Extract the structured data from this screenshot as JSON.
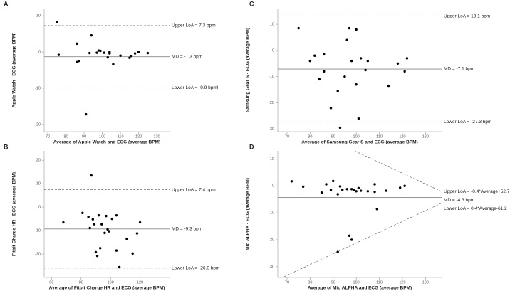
{
  "chart_data": [
    {
      "type": "scatter",
      "letter": "A",
      "x_label": "Average of Apple Watch and ECG (average BPM)",
      "y_label": "Apple Watch - ECG (average BPM)",
      "x": [
        75,
        76,
        86,
        86,
        87,
        91,
        93,
        94,
        97,
        98,
        99,
        101,
        103,
        104,
        104,
        106,
        110,
        115,
        116,
        118,
        120,
        125
      ],
      "y": [
        8.2,
        -0.8,
        2.3,
        -2.8,
        -2.5,
        -17.2,
        -0.3,
        4.6,
        -0.2,
        0.4,
        0.3,
        -0.2,
        -1.5,
        -0.4,
        0,
        -3.4,
        -1,
        -1.6,
        -1.1,
        -0.4,
        0,
        -0.3
      ],
      "color": "#000000",
      "xlim": [
        68,
        137
      ],
      "ylim": [
        -22,
        12
      ],
      "xticks": [
        70,
        80,
        90,
        100,
        110,
        120,
        130
      ],
      "yticks": [
        10,
        0,
        -10,
        -20
      ],
      "reference_lines": [
        {
          "label": "Upper LoA = 7.3 bpm",
          "value": 7.3,
          "style": "dashed"
        },
        {
          "label": "MD = -1.3 bpm",
          "value": -1.3,
          "style": "solid"
        },
        {
          "label": "Lower LoA = -9.9 bpml",
          "value": -9.9,
          "style": "dashed"
        }
      ]
    },
    {
      "type": "scatter",
      "letter": "B",
      "x_label": "Average of Fitbit Charge HR and ECG (average BPM)",
      "y_label": "Fitbit Charge HR - ECG (average BPM)",
      "x": [
        68,
        81,
        85,
        86,
        87,
        88,
        89,
        90,
        91,
        92,
        93,
        94,
        96,
        97,
        98,
        99,
        101,
        104,
        104,
        106,
        111,
        115,
        118,
        120
      ],
      "y": [
        -6.5,
        -2.5,
        -4.2,
        -8.9,
        13.5,
        -5.2,
        -7.3,
        -19.2,
        -20.8,
        -3.5,
        -17.5,
        -7.3,
        -11,
        -3.8,
        -9.5,
        -10.3,
        -5,
        -3.5,
        -18.5,
        -25.6,
        -13.5,
        -19.8,
        -11.2,
        -6.5
      ],
      "color": "#000000",
      "xlim": [
        55,
        140
      ],
      "ylim": [
        -30,
        24
      ],
      "xticks": [
        60,
        80,
        100,
        120
      ],
      "yticks": [
        20,
        10,
        0,
        -10,
        -20
      ],
      "reference_lines": [
        {
          "label": "Upper LoA = 7.4 bpm",
          "value": 7.4,
          "style": "dashed"
        },
        {
          "label": "MD = -9.3 bpm",
          "value": -9.3,
          "style": "solid"
        },
        {
          "label": "Lower LoA = -26.0 bpm",
          "value": -26.0,
          "style": "dashed"
        }
      ]
    },
    {
      "type": "scatter",
      "letter": "C",
      "x_label": "Average of Samsung Gear S and ECG (average BPM)",
      "y_label": "Samsung Gear S - ECG (average BPM)",
      "x": [
        75,
        80,
        82,
        84,
        86,
        86,
        89,
        92,
        93,
        95,
        96,
        97,
        98,
        100,
        100,
        101,
        102,
        104,
        105,
        114,
        118,
        121,
        122
      ],
      "y": [
        8.5,
        -4,
        -2,
        -11,
        -1.5,
        -8,
        -22,
        -15.5,
        -29.5,
        -10,
        4,
        8.5,
        -4,
        8,
        -13,
        -26,
        -3,
        -7.5,
        -4,
        -13.5,
        -5,
        -8,
        -3
      ],
      "color": "#000000",
      "xlim": [
        66,
        137
      ],
      "ylim": [
        -31,
        16
      ],
      "xticks": [
        70,
        80,
        90,
        100,
        110,
        120,
        130
      ],
      "yticks": [
        10,
        0,
        -10,
        -20,
        -30
      ],
      "reference_lines": [
        {
          "label": "Upper LoA = 13.1 bpm",
          "value": 13.1,
          "style": "dashed"
        },
        {
          "label": "MD = -7.1 bpm",
          "value": -7.1,
          "style": "solid"
        },
        {
          "label": "Lower LoA = -27.3 bpm",
          "value": -27.3,
          "style": "dashed"
        }
      ]
    },
    {
      "type": "scatter",
      "letter": "D",
      "x_label": "Average of Mio ALPHA and ECG (average BPM)",
      "y_label": "Mio ALPHA - ECG (average BPM)",
      "x": [
        72,
        77,
        85,
        87,
        89,
        90,
        92,
        92,
        93,
        94,
        96,
        97,
        98,
        98,
        99,
        100,
        101,
        102,
        105,
        108,
        108,
        109,
        113,
        119,
        121
      ],
      "y": [
        1.7,
        -0.3,
        -2.5,
        0.6,
        -1.5,
        1.8,
        -3.1,
        -24.5,
        -0.2,
        -1.5,
        -1.2,
        -18.5,
        -1.2,
        -20,
        -1.6,
        -2,
        -0.8,
        -1.8,
        -2,
        -2.2,
        0.6,
        -8.6,
        -1.8,
        -0.7,
        0
      ],
      "color": "#000000",
      "xlim": [
        66,
        137
      ],
      "ylim": [
        -34,
        13
      ],
      "xticks": [
        70,
        80,
        90,
        100,
        110,
        120,
        130
      ],
      "yticks": [
        10,
        0,
        -10,
        -20,
        -30
      ],
      "reference_lines": [
        {
          "label": "Upper LoA = -0.4*Average+52.7",
          "slope": -0.4,
          "intercept": 52.7,
          "style": "dashed"
        },
        {
          "label": "MD = -4.3 bpm",
          "value": -4.3,
          "style": "solid"
        },
        {
          "label": "Lower LoA = 0.4*Average-61.2",
          "slope": 0.4,
          "intercept": -61.2,
          "style": "dashed"
        }
      ]
    }
  ]
}
